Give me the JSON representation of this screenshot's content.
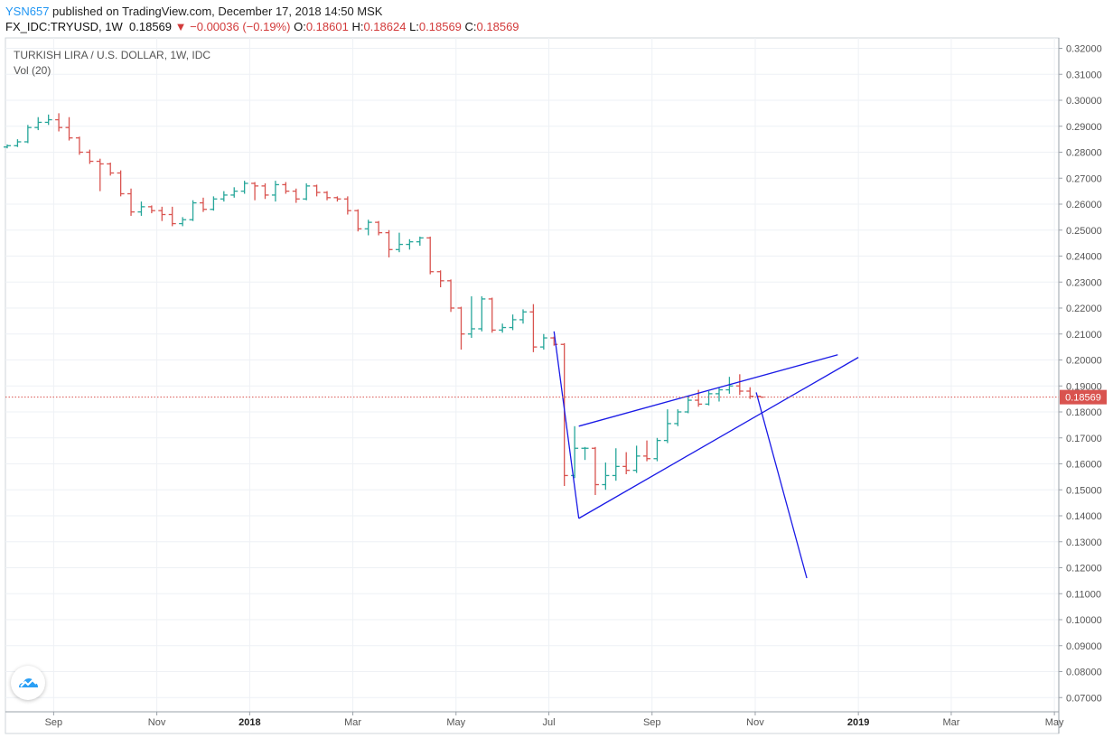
{
  "header": {
    "user": "YSN657",
    "published": "published on TradingView.com, December 17, 2018 14:50 MSK",
    "symbol": "FX_IDC:TRYUSD, 1W",
    "last": "0.18569",
    "change_arrow": "▼",
    "change": "−0.00036 (−0.19%)",
    "o_label": "O:",
    "o": "0.18601",
    "h_label": "H:",
    "h": "0.18624",
    "l_label": "L:",
    "l": "0.18569",
    "c_label": "C:",
    "c": "0.18569"
  },
  "legend": {
    "title": "TURKISH LIRA / U.S. DOLLAR, 1W, IDC",
    "volume": "Vol (20)"
  },
  "logo_icon": "tradingview-cloud-icon",
  "colors": {
    "up": "#26a69a",
    "down": "#d9534f",
    "drawing": "#1a1ae6",
    "last_price_line": "#d9534f",
    "grid": "#eef1f5"
  },
  "chart_data": {
    "type": "ohlc",
    "timeframe": "1W",
    "ylim": [
      0.065,
      0.325
    ],
    "y_ticks": [
      "0.32000",
      "0.31000",
      "0.30000",
      "0.29000",
      "0.28000",
      "0.27000",
      "0.26000",
      "0.25000",
      "0.24000",
      "0.23000",
      "0.22000",
      "0.21000",
      "0.20000",
      "0.19000",
      "0.18000",
      "0.17000",
      "0.16000",
      "0.15000",
      "0.14000",
      "0.13000",
      "0.12000",
      "0.11000",
      "0.10000",
      "0.09000",
      "0.08000",
      "0.07000"
    ],
    "x_ticks": [
      "Sep",
      "Nov",
      "2018",
      "Mar",
      "May",
      "Jul",
      "Sep",
      "Nov",
      "2019",
      "Mar",
      "May"
    ],
    "x_tick_weeks": [
      4.5,
      14.5,
      23.5,
      33.5,
      43.5,
      52.5,
      62.5,
      72.5,
      82.5,
      91.5,
      101.5
    ],
    "last_price_label": "0.18569",
    "bars": [
      {
        "w": 0,
        "o": 0.282,
        "h": 0.283,
        "l": 0.2815,
        "c": 0.2825
      },
      {
        "w": 1,
        "o": 0.2825,
        "h": 0.285,
        "l": 0.282,
        "c": 0.284
      },
      {
        "w": 2,
        "o": 0.284,
        "h": 0.2905,
        "l": 0.2835,
        "c": 0.2895
      },
      {
        "w": 3,
        "o": 0.2895,
        "h": 0.2935,
        "l": 0.2885,
        "c": 0.2915
      },
      {
        "w": 4,
        "o": 0.2915,
        "h": 0.2945,
        "l": 0.2905,
        "c": 0.2925
      },
      {
        "w": 5,
        "o": 0.2925,
        "h": 0.295,
        "l": 0.288,
        "c": 0.2895
      },
      {
        "w": 6,
        "o": 0.2895,
        "h": 0.2935,
        "l": 0.2845,
        "c": 0.2855
      },
      {
        "w": 7,
        "o": 0.2855,
        "h": 0.286,
        "l": 0.279,
        "c": 0.28
      },
      {
        "w": 8,
        "o": 0.28,
        "h": 0.281,
        "l": 0.2755,
        "c": 0.2765
      },
      {
        "w": 9,
        "o": 0.2765,
        "h": 0.2775,
        "l": 0.265,
        "c": 0.2755
      },
      {
        "w": 10,
        "o": 0.2755,
        "h": 0.276,
        "l": 0.271,
        "c": 0.272
      },
      {
        "w": 11,
        "o": 0.272,
        "h": 0.273,
        "l": 0.263,
        "c": 0.264
      },
      {
        "w": 12,
        "o": 0.264,
        "h": 0.266,
        "l": 0.2555,
        "c": 0.257
      },
      {
        "w": 13,
        "o": 0.257,
        "h": 0.261,
        "l": 0.2555,
        "c": 0.259
      },
      {
        "w": 14,
        "o": 0.259,
        "h": 0.2595,
        "l": 0.2565,
        "c": 0.2575
      },
      {
        "w": 15,
        "o": 0.2575,
        "h": 0.259,
        "l": 0.2535,
        "c": 0.256
      },
      {
        "w": 16,
        "o": 0.256,
        "h": 0.259,
        "l": 0.2515,
        "c": 0.2525
      },
      {
        "w": 17,
        "o": 0.2525,
        "h": 0.255,
        "l": 0.2515,
        "c": 0.254
      },
      {
        "w": 18,
        "o": 0.254,
        "h": 0.2615,
        "l": 0.2535,
        "c": 0.2605
      },
      {
        "w": 19,
        "o": 0.2605,
        "h": 0.2625,
        "l": 0.257,
        "c": 0.258
      },
      {
        "w": 20,
        "o": 0.258,
        "h": 0.263,
        "l": 0.2575,
        "c": 0.262
      },
      {
        "w": 21,
        "o": 0.262,
        "h": 0.265,
        "l": 0.261,
        "c": 0.2635
      },
      {
        "w": 22,
        "o": 0.2635,
        "h": 0.2665,
        "l": 0.2625,
        "c": 0.265
      },
      {
        "w": 23,
        "o": 0.265,
        "h": 0.269,
        "l": 0.264,
        "c": 0.268
      },
      {
        "w": 24,
        "o": 0.268,
        "h": 0.2685,
        "l": 0.2615,
        "c": 0.267
      },
      {
        "w": 25,
        "o": 0.267,
        "h": 0.268,
        "l": 0.262,
        "c": 0.2635
      },
      {
        "w": 26,
        "o": 0.2635,
        "h": 0.269,
        "l": 0.261,
        "c": 0.2675
      },
      {
        "w": 27,
        "o": 0.2675,
        "h": 0.2685,
        "l": 0.264,
        "c": 0.265
      },
      {
        "w": 28,
        "o": 0.265,
        "h": 0.266,
        "l": 0.2605,
        "c": 0.262
      },
      {
        "w": 29,
        "o": 0.262,
        "h": 0.268,
        "l": 0.2615,
        "c": 0.267
      },
      {
        "w": 30,
        "o": 0.267,
        "h": 0.2675,
        "l": 0.263,
        "c": 0.2645
      },
      {
        "w": 31,
        "o": 0.2645,
        "h": 0.265,
        "l": 0.2615,
        "c": 0.2625
      },
      {
        "w": 32,
        "o": 0.2625,
        "h": 0.263,
        "l": 0.261,
        "c": 0.262
      },
      {
        "w": 33,
        "o": 0.262,
        "h": 0.263,
        "l": 0.256,
        "c": 0.2575
      },
      {
        "w": 34,
        "o": 0.2575,
        "h": 0.258,
        "l": 0.2495,
        "c": 0.2505
      },
      {
        "w": 35,
        "o": 0.2505,
        "h": 0.254,
        "l": 0.248,
        "c": 0.253
      },
      {
        "w": 36,
        "o": 0.253,
        "h": 0.2535,
        "l": 0.248,
        "c": 0.249
      },
      {
        "w": 37,
        "o": 0.249,
        "h": 0.25,
        "l": 0.2395,
        "c": 0.2425
      },
      {
        "w": 38,
        "o": 0.2425,
        "h": 0.249,
        "l": 0.2415,
        "c": 0.2445
      },
      {
        "w": 39,
        "o": 0.2445,
        "h": 0.2465,
        "l": 0.2425,
        "c": 0.2455
      },
      {
        "w": 40,
        "o": 0.2455,
        "h": 0.2475,
        "l": 0.244,
        "c": 0.247
      },
      {
        "w": 41,
        "o": 0.247,
        "h": 0.2475,
        "l": 0.233,
        "c": 0.234
      },
      {
        "w": 42,
        "o": 0.234,
        "h": 0.2345,
        "l": 0.228,
        "c": 0.2305
      },
      {
        "w": 43,
        "o": 0.2305,
        "h": 0.231,
        "l": 0.2185,
        "c": 0.22
      },
      {
        "w": 44,
        "o": 0.22,
        "h": 0.2205,
        "l": 0.204,
        "c": 0.21
      },
      {
        "w": 45,
        "o": 0.21,
        "h": 0.2245,
        "l": 0.2085,
        "c": 0.212
      },
      {
        "w": 46,
        "o": 0.212,
        "h": 0.2245,
        "l": 0.211,
        "c": 0.2235
      },
      {
        "w": 47,
        "o": 0.2235,
        "h": 0.224,
        "l": 0.2105,
        "c": 0.2115
      },
      {
        "w": 48,
        "o": 0.2115,
        "h": 0.214,
        "l": 0.2105,
        "c": 0.2125
      },
      {
        "w": 49,
        "o": 0.2125,
        "h": 0.2175,
        "l": 0.2115,
        "c": 0.2155
      },
      {
        "w": 50,
        "o": 0.2155,
        "h": 0.2195,
        "l": 0.214,
        "c": 0.2185
      },
      {
        "w": 51,
        "o": 0.2185,
        "h": 0.2215,
        "l": 0.203,
        "c": 0.205
      },
      {
        "w": 52,
        "o": 0.205,
        "h": 0.21,
        "l": 0.204,
        "c": 0.2085
      },
      {
        "w": 53,
        "o": 0.2085,
        "h": 0.209,
        "l": 0.2055,
        "c": 0.206
      },
      {
        "w": 54,
        "o": 0.206,
        "h": 0.2065,
        "l": 0.1515,
        "c": 0.1555
      },
      {
        "w": 55,
        "o": 0.1555,
        "h": 0.1745,
        "l": 0.1545,
        "c": 0.166
      },
      {
        "w": 56,
        "o": 0.166,
        "h": 0.1665,
        "l": 0.1615,
        "c": 0.166
      },
      {
        "w": 57,
        "o": 0.166,
        "h": 0.1665,
        "l": 0.148,
        "c": 0.152
      },
      {
        "w": 58,
        "o": 0.152,
        "h": 0.1605,
        "l": 0.15,
        "c": 0.1555
      },
      {
        "w": 59,
        "o": 0.1555,
        "h": 0.166,
        "l": 0.1535,
        "c": 0.159
      },
      {
        "w": 60,
        "o": 0.159,
        "h": 0.1645,
        "l": 0.156,
        "c": 0.1575
      },
      {
        "w": 61,
        "o": 0.1575,
        "h": 0.167,
        "l": 0.1565,
        "c": 0.163
      },
      {
        "w": 62,
        "o": 0.163,
        "h": 0.169,
        "l": 0.161,
        "c": 0.162
      },
      {
        "w": 63,
        "o": 0.162,
        "h": 0.17,
        "l": 0.161,
        "c": 0.169
      },
      {
        "w": 64,
        "o": 0.169,
        "h": 0.181,
        "l": 0.168,
        "c": 0.1755
      },
      {
        "w": 65,
        "o": 0.1755,
        "h": 0.181,
        "l": 0.1745,
        "c": 0.18
      },
      {
        "w": 66,
        "o": 0.18,
        "h": 0.186,
        "l": 0.1795,
        "c": 0.1845
      },
      {
        "w": 67,
        "o": 0.1845,
        "h": 0.1885,
        "l": 0.182,
        "c": 0.183
      },
      {
        "w": 68,
        "o": 0.183,
        "h": 0.188,
        "l": 0.1825,
        "c": 0.187
      },
      {
        "w": 69,
        "o": 0.187,
        "h": 0.1895,
        "l": 0.184,
        "c": 0.1885
      },
      {
        "w": 70,
        "o": 0.1885,
        "h": 0.1935,
        "l": 0.187,
        "c": 0.19
      },
      {
        "w": 71,
        "o": 0.19,
        "h": 0.1945,
        "l": 0.1865,
        "c": 0.188
      },
      {
        "w": 72,
        "o": 0.188,
        "h": 0.1895,
        "l": 0.185,
        "c": 0.186
      },
      {
        "w": 73,
        "o": 0.18601,
        "h": 0.18624,
        "l": 0.18569,
        "c": 0.18569
      }
    ],
    "drawings": [
      {
        "type": "trendline",
        "from": {
          "w": 53,
          "p": 0.211
        },
        "to": {
          "w": 55.4,
          "p": 0.139
        }
      },
      {
        "type": "trendline",
        "from": {
          "w": 55.4,
          "p": 0.139
        },
        "to": {
          "w": 82.5,
          "p": 0.201
        }
      },
      {
        "type": "trendline",
        "from": {
          "w": 55.4,
          "p": 0.1745
        },
        "to": {
          "w": 80.5,
          "p": 0.202
        }
      },
      {
        "type": "trendline",
        "from": {
          "w": 72.6,
          "p": 0.1875
        },
        "to": {
          "w": 77.5,
          "p": 0.116
        }
      }
    ]
  }
}
